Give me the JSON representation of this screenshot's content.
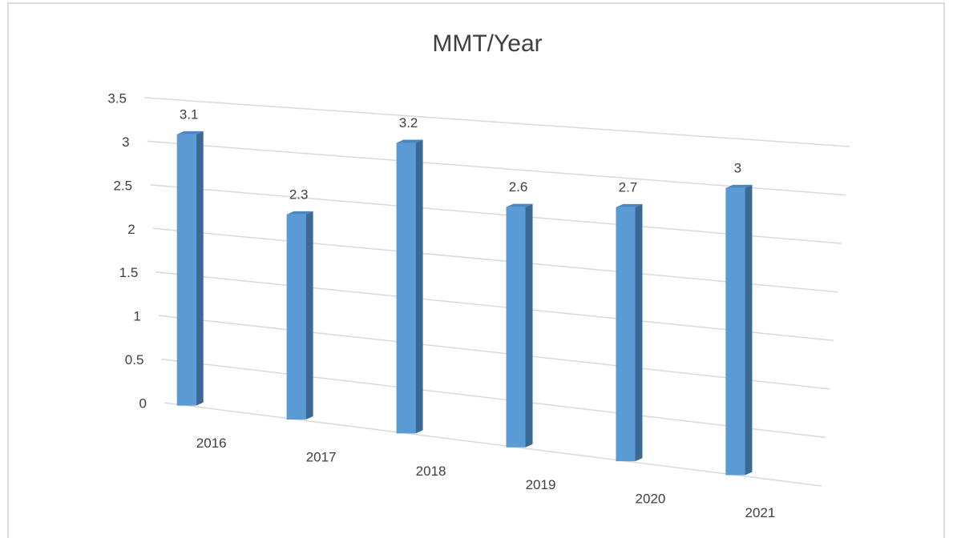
{
  "chart_data": {
    "type": "bar3d",
    "title": "MMT/Year",
    "categories": [
      "2016",
      "2017",
      "2018",
      "2019",
      "2020",
      "2021"
    ],
    "values": [
      3.1,
      2.3,
      3.2,
      2.6,
      2.7,
      3
    ],
    "color": "#5b9bd5",
    "ylim": [
      0,
      3.5
    ],
    "yticks": [
      0,
      0.5,
      1,
      1.5,
      2,
      2.5,
      3,
      3.5
    ],
    "grid": true
  }
}
